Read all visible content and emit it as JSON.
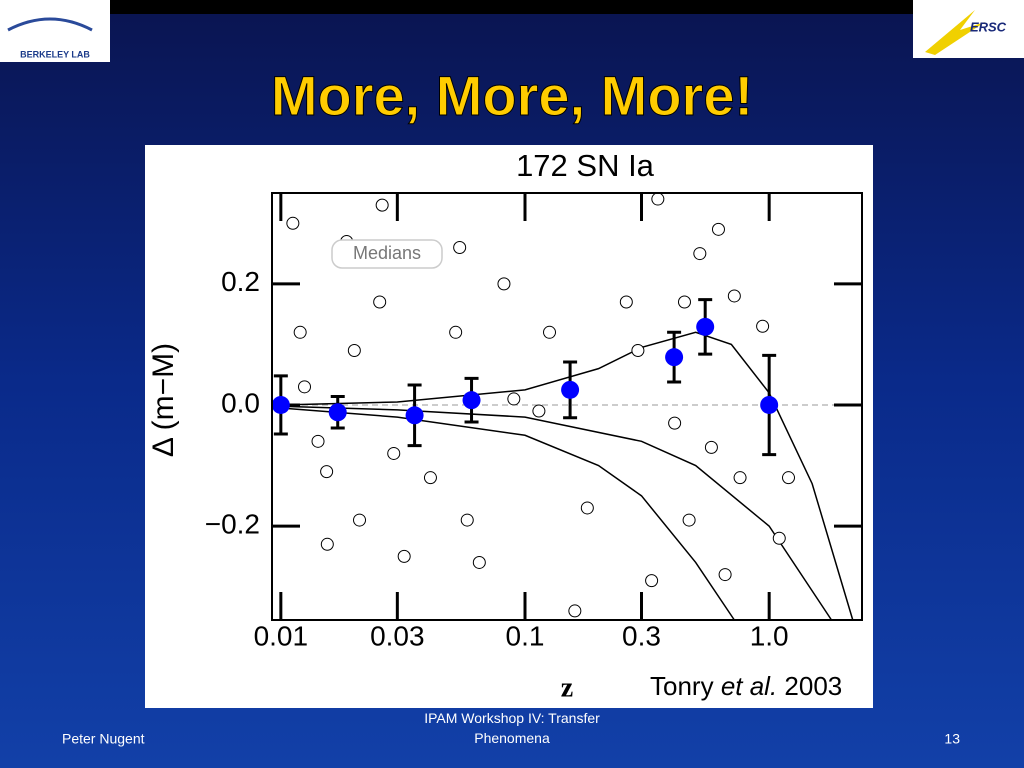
{
  "slide": {
    "title": "More, More, More!",
    "footer_left": "Peter Nugent",
    "footer_center": "IPAM Workshop IV: Transfer Phenomena",
    "page_number": "13",
    "logo_left": "BERKELEY LAB",
    "logo_right": "ERSC"
  },
  "chart_data": {
    "type": "scatter",
    "title": "172 SN Ia",
    "ylabel": "Δ (m−M)",
    "xlabel": "z",
    "credit": {
      "author": "Tonry",
      "etal": "et al.",
      "year": "2003"
    },
    "annotation": "Medians",
    "xscale": "log",
    "xlim": [
      0.0092,
      2.4
    ],
    "ylim": [
      -0.355,
      0.35
    ],
    "xticks": [
      0.01,
      0.03,
      0.1,
      0.3,
      {
        "value": 1,
        "label": "1.0"
      }
    ],
    "yticks": [
      {
        "value": -0.2,
        "label": "−0.2"
      },
      {
        "value": 0,
        "label": "0.0"
      },
      0.2
    ],
    "reference_line": 0,
    "series": [
      {
        "name": "Medians",
        "color": "#0000ff",
        "x": [
          0.01,
          0.0171,
          0.0353,
          0.0604,
          0.153,
          0.408,
          0.547,
          1.0
        ],
        "values": [
          0.0,
          -0.012,
          -0.017,
          0.008,
          0.025,
          0.079,
          0.129,
          0.0
        ],
        "errors": [
          0.048,
          0.026,
          0.05,
          0.036,
          0.046,
          0.041,
          0.045,
          0.082
        ]
      },
      {
        "color": "#ffffff",
        "x": [
          0.0112,
          0.012,
          0.0125,
          0.0142,
          0.0154,
          0.0155,
          0.0186,
          0.02,
          0.021,
          0.0254,
          0.026,
          0.029,
          0.032,
          0.041,
          0.052,
          0.054,
          0.058,
          0.065,
          0.082,
          0.09,
          0.114,
          0.126,
          0.16,
          0.18,
          0.26,
          0.29,
          0.33,
          0.35,
          0.41,
          0.45,
          0.47,
          0.52,
          0.58,
          0.62,
          0.66,
          0.72,
          0.76,
          0.94,
          1.2,
          1.1
        ],
        "values": [
          0.3,
          0.12,
          0.03,
          -0.06,
          -0.11,
          -0.23,
          0.27,
          0.09,
          -0.19,
          0.17,
          0.33,
          -0.08,
          -0.25,
          -0.12,
          0.12,
          0.26,
          -0.19,
          -0.26,
          0.2,
          0.01,
          -0.01,
          0.12,
          -0.34,
          -0.17,
          0.17,
          0.09,
          -0.29,
          0.34,
          -0.03,
          0.17,
          -0.19,
          0.25,
          -0.07,
          0.29,
          -0.28,
          0.18,
          -0.12,
          0.13,
          -0.12,
          -0.22
        ]
      }
    ],
    "lines": [
      {
        "color": "#000000",
        "x": [
          0.01,
          0.03,
          0.1,
          0.2,
          0.3,
          0.5,
          0.7,
          1.0,
          1.5,
          2.2
        ],
        "values": [
          0.0,
          0.005,
          0.025,
          0.06,
          0.095,
          0.12,
          0.1,
          0.02,
          -0.13,
          -0.355
        ]
      },
      {
        "color": "#000000",
        "x": [
          0.01,
          0.03,
          0.1,
          0.3,
          0.5,
          1.0,
          1.8
        ],
        "values": [
          -0.002,
          -0.008,
          -0.02,
          -0.06,
          -0.1,
          -0.2,
          -0.355
        ]
      },
      {
        "color": "#000000",
        "x": [
          0.01,
          0.03,
          0.1,
          0.2,
          0.3,
          0.5,
          0.72
        ],
        "values": [
          -0.005,
          -0.02,
          -0.05,
          -0.1,
          -0.15,
          -0.26,
          -0.355
        ]
      }
    ]
  }
}
